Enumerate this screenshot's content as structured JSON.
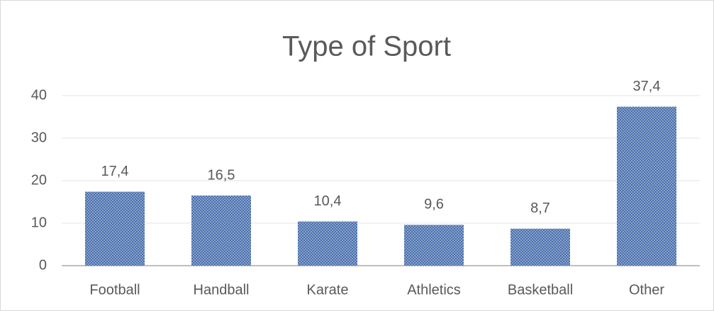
{
  "chart_data": {
    "type": "bar",
    "title": "Type of Sport",
    "categories": [
      "Football",
      "Handball",
      "Karate",
      "Athletics",
      "Basketball",
      "Other"
    ],
    "values": [
      17.4,
      16.5,
      10.4,
      9.6,
      8.7,
      37.4
    ],
    "value_labels": [
      "17,4",
      "16,5",
      "10,4",
      "9,6",
      "8,7",
      "37,4"
    ],
    "color": "#4a70ad",
    "ylim": [
      0,
      40
    ],
    "yticks": [
      0,
      10,
      20,
      30,
      40
    ],
    "grid": true
  }
}
